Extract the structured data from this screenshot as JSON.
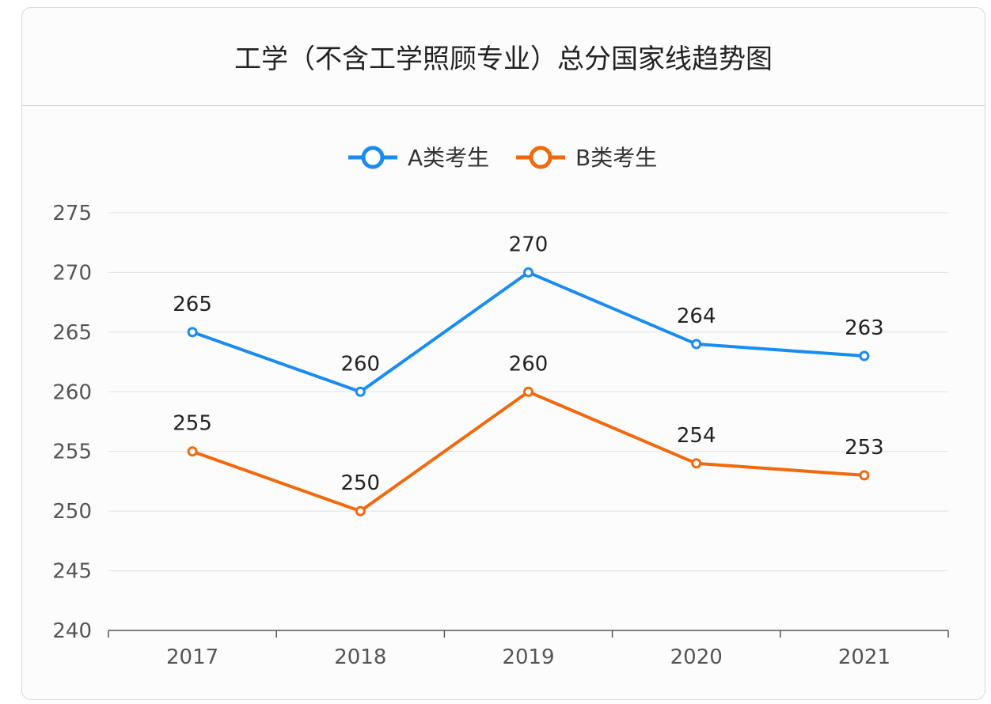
{
  "chart_data": {
    "type": "line",
    "title": "工学（不含工学照顾专业）总分国家线趋势图",
    "categories": [
      "2017",
      "2018",
      "2019",
      "2020",
      "2021"
    ],
    "series": [
      {
        "name": "A类考生",
        "values": [
          265,
          260,
          270,
          264,
          263
        ],
        "color": "#1a8cf0"
      },
      {
        "name": "B类考生",
        "values": [
          255,
          250,
          260,
          254,
          253
        ],
        "color": "#f2690d"
      }
    ],
    "ylim": [
      240,
      275
    ],
    "yticks": [
      240,
      245,
      250,
      255,
      260,
      265,
      270,
      275
    ],
    "grid": true,
    "legend": "top-center",
    "data_labels": true
  }
}
